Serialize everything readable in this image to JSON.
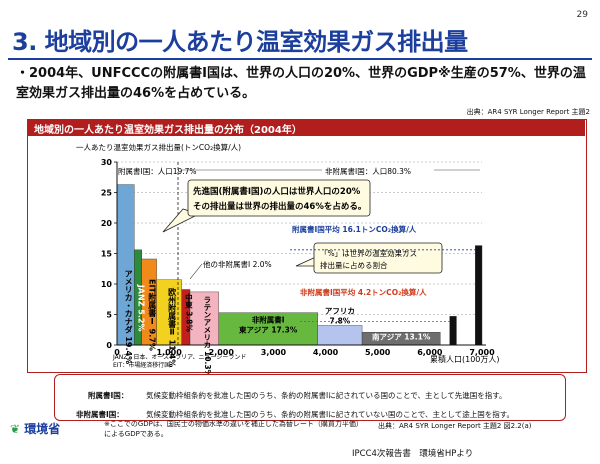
{
  "page_number": "29",
  "title": "3. 地域別の一人あたり温室効果ガス排出量",
  "bullet": "・2004年、UNFCCCの附属書Ⅰ国は、世界の人口の20%、世界のGDP※生産の57%、世界の温室効果ガス排出量の46%を占めている。",
  "source_top": "出典：AR4 SYR Longer Report 主題2",
  "chart_header": "地域別の一人あたり温室効果ガス排出量の分布（2004年）",
  "logo_text": "環境省",
  "note_text": "※ここでのGDPは、国民士の物価水準の違いを補正した為替レート（購買力平価）によるGDPである。",
  "source_bottom": "出典：AR4 SYR Longer Report 主題2 図2.2(a)",
  "credit": "IPCC4次報告書　環境省HPより",
  "legend": {
    "annex1_term": "附属書Ⅰ国：",
    "annex1_desc": "気候変動枠組条約を批准した国のうち、条約の附属書Ⅰに記されている国のことで、主として先進国を指す。",
    "nonannex1_term": "非附属書Ⅰ国：",
    "nonannex1_desc": "気候変動枠組条約を批准した国のうち、条約の附属書Ⅰに記されていない国のことで、主として途上国を指す。"
  },
  "colors": {
    "title_blue": "#1c3f9e",
    "frame_red": "#b01e1e",
    "annex1_avg": "#1c3f9e",
    "nonannex1_avg": "#d13a1a"
  },
  "chart_data": {
    "type": "bar",
    "variant": "variable-width",
    "ylabel": "一人あたり温室効果ガス排出量(トンCO₂換算/人)",
    "xlabel": "累積人口(100万人)",
    "xlim": [
      0,
      7000
    ],
    "ylim": [
      0,
      30
    ],
    "xticks": [
      "0",
      "1,000",
      "2,000",
      "3,000",
      "4,000",
      "5,000",
      "6,000",
      "7,000"
    ],
    "xtick_values": [
      0,
      1000,
      2000,
      3000,
      4000,
      5000,
      6000,
      7000
    ],
    "yticks": [
      "0",
      "5",
      "10",
      "15",
      "20",
      "25",
      "30"
    ],
    "ytick_values": [
      0,
      5,
      10,
      15,
      20,
      25,
      30
    ],
    "bars": [
      {
        "label": "アメリカ・カナダ 19.4%",
        "x0": 0,
        "x1": 330,
        "y": 26.3,
        "color": "#6ea6d6"
      },
      {
        "label": "JANZ 5.2%",
        "x0": 330,
        "x1": 475,
        "y": 15.6,
        "color": "#2e8a3c"
      },
      {
        "label": "EIT附属書Ⅰ 9.7%",
        "x0": 475,
        "x1": 760,
        "y": 14.1,
        "color": "#f08a1a"
      },
      {
        "label": "欧州附属書Ⅱ 11.4%",
        "x0": 760,
        "x1": 1240,
        "y": 10.7,
        "color": "#f2d21f"
      },
      {
        "label": "中東 3.8%",
        "x0": 1240,
        "x1": 1400,
        "y": 9.1,
        "color": "#c21f1f"
      },
      {
        "label": "ラテンアメリカ 10.3%",
        "x0": 1400,
        "x1": 1950,
        "y": 8.7,
        "color": "#f3b4c0"
      },
      {
        "label": "非附属書Ⅰ東アジア 17.3%",
        "x0": 1950,
        "x1": 3850,
        "y": 5.3,
        "color": "#66b83e"
      },
      {
        "label": "アフリカ 7.8%",
        "x0": 3850,
        "x1": 4700,
        "y": 3.2,
        "color": "#b5c4ee"
      },
      {
        "label": "南アジア 13.1%",
        "x0": 4700,
        "x1": 6200,
        "y": 2.1,
        "color": "#6e6e6e"
      },
      {
        "label": "",
        "x0": 6380,
        "x1": 6510,
        "y": 4.7,
        "color": "#111111"
      },
      {
        "label": "",
        "x0": 6870,
        "x1": 7000,
        "y": 16.3,
        "color": "#111111"
      }
    ],
    "bar_labels": {
      "usa_canada": "アメリカ・カナダ 19.4%",
      "janz": "JANZ 5.2%",
      "eit": "EIT附属書Ⅰ 9.7%",
      "europe": "欧州附属書Ⅱ 11.4%",
      "middle_east": "中東 3.8%",
      "latin_america": "ラテンアメリカ 10.3%",
      "east_asia_name": "非附属書Ⅰ",
      "east_asia_line": "東アジア 17.3%",
      "africa_name": "アフリカ",
      "africa_pct": "7.8%",
      "south_asia": "南アジア 13.1%"
    },
    "annex1_avg": {
      "value": 16.1,
      "label": "附属書Ⅰ国平均 16.1トンCO₂換算/人"
    },
    "nonannex1_avg": {
      "value": 4.2,
      "label": "非附属書Ⅰ国平均 4.2トンCO₂換算/人"
    },
    "annotations": {
      "annex1_pop": "附属書Ⅰ国：人口19.7%",
      "nonannex1_pop": "非附属書Ⅰ国：人口80.3%",
      "callout_main": "先進国(附属書Ⅰ国)の人口は世界人口の20%その排出量は世界の排出量の46%を占める。",
      "other_nonannex": "他の非附属書Ⅰ 2.0%",
      "pct_meaning": "「%」は世界の温室効果ガス排出量に占める割合",
      "janz_def": "JANZ：日本、オーストラリア、ニュージーランド",
      "eit_def": "EIT：市場経済移行国"
    }
  }
}
